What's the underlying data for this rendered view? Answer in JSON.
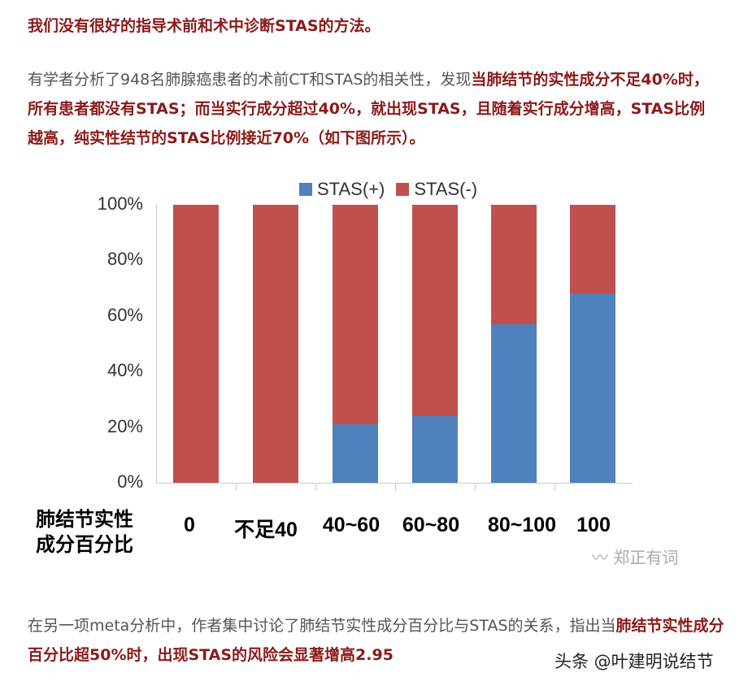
{
  "text": {
    "p1": "我们没有很好的指导术前和术中诊断STAS的方法。",
    "p2_normal": "有学者分析了948名肺腺癌患者的术前CT和STAS的相关性，发现",
    "p2_bold": "当肺结节的实性成分不足40%时，所有患者都没有STAS；而当实行成分超过40%，就出现STAS，且随着实行成分增高，STAS比例越高，纯实性结节的STAS比例接近70%（如下图所示）。",
    "p3_normal": "在另一项meta分析中，作者集中讨论了肺结节实性成分百分比与STAS的关系，指出当",
    "p3_bold": "肺结节实性成分百分比超50%时，出现STAS的风险会显著增高2.95",
    "watermark_chart": "〰 郑正有词",
    "watermark_bottom": "头条 @叶建明说结节"
  },
  "chart_data": {
    "type": "bar",
    "stacked": true,
    "title": "",
    "xlabel": "肺结节实性成分百分比",
    "ylabel": "",
    "categories": [
      "0",
      "不足40",
      "40~60",
      "60~80",
      "80~100",
      "100"
    ],
    "series": [
      {
        "name": "STAS(+)",
        "color": "#4f81bd",
        "values": [
          0,
          0,
          21,
          24,
          57,
          68
        ]
      },
      {
        "name": "STAS(-)",
        "color": "#c0504d",
        "values": [
          100,
          100,
          79,
          76,
          43,
          32
        ]
      }
    ],
    "yticks": [
      "0%",
      "20%",
      "40%",
      "60%",
      "80%",
      "100%"
    ],
    "ylim": [
      0,
      100
    ],
    "grid": false,
    "legend_position": "top"
  }
}
